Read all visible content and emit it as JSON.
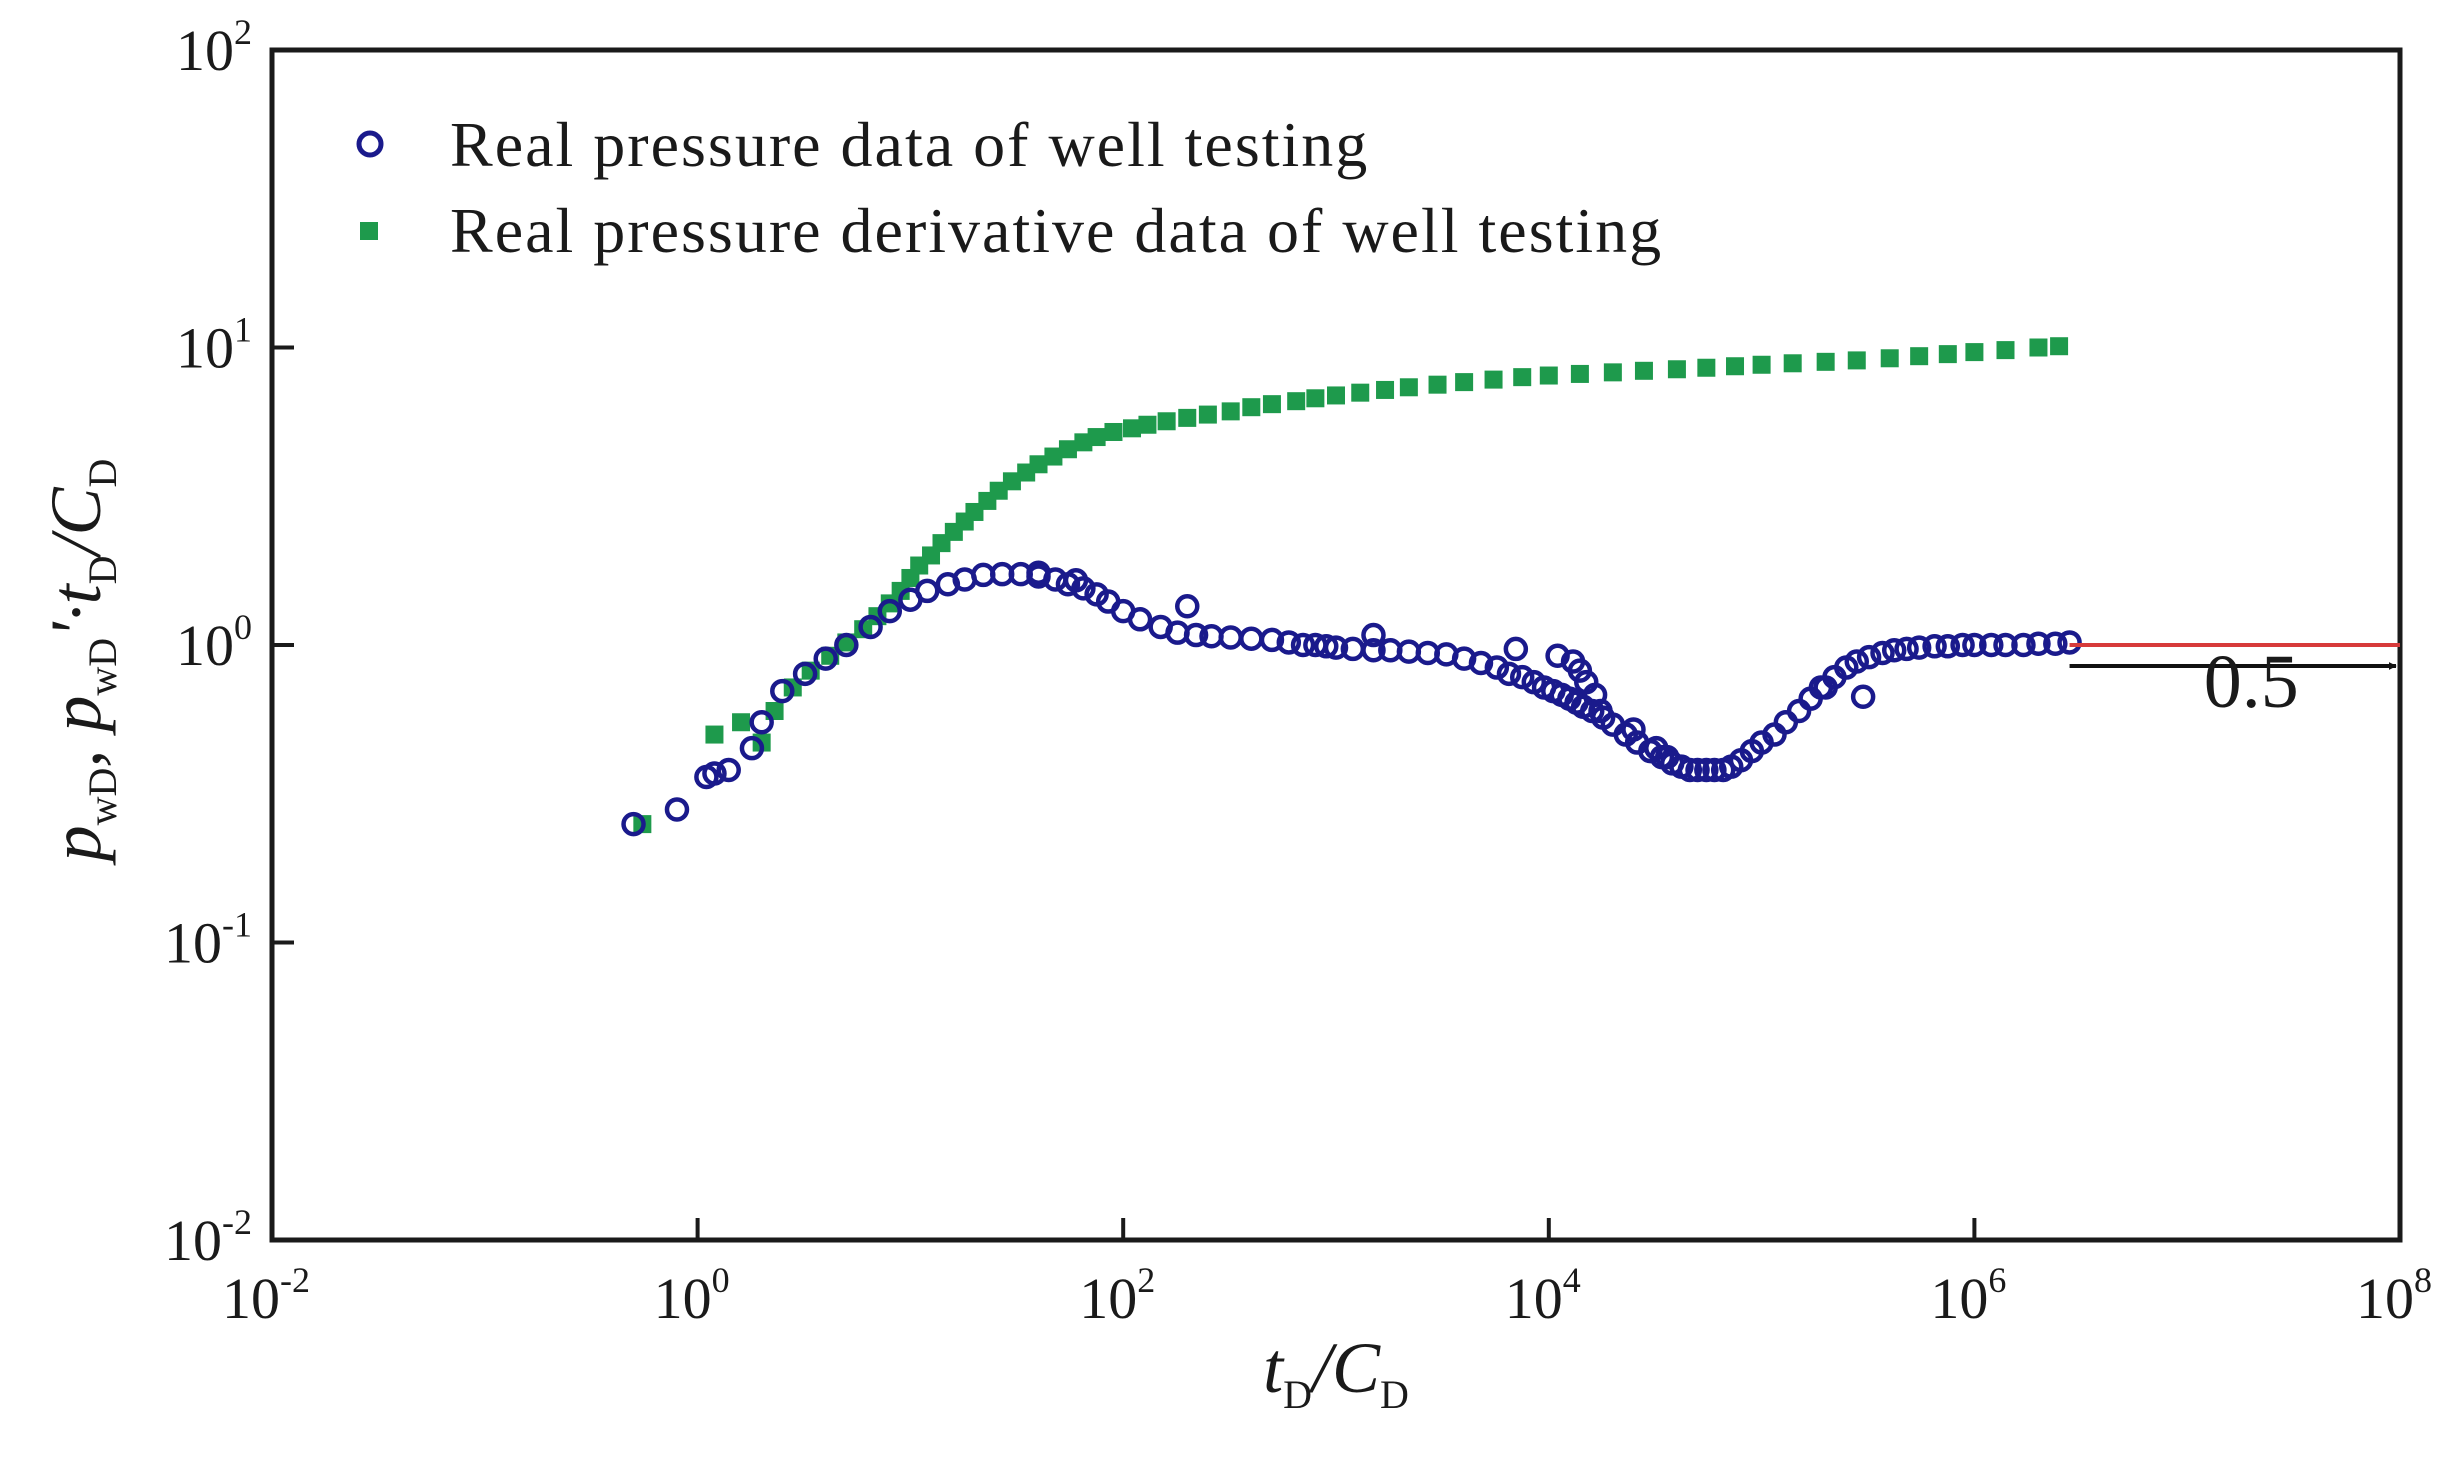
{
  "chart_data": {
    "type": "scatter",
    "title": "",
    "xlabel": "tD/CD",
    "ylabel": "pwD, pwD'·tD/CD",
    "x_scale": "log",
    "y_scale": "log",
    "xlim": [
      0.01,
      100000000
    ],
    "ylim": [
      0.01,
      100
    ],
    "grid": false,
    "legend_position": "top-left",
    "x_ticks": [
      {
        "base": "10",
        "exp": "-2"
      },
      {
        "base": "10",
        "exp": "0"
      },
      {
        "base": "10",
        "exp": "2"
      },
      {
        "base": "10",
        "exp": "4"
      },
      {
        "base": "10",
        "exp": "6"
      },
      {
        "base": "10",
        "exp": "8"
      }
    ],
    "y_ticks": [
      {
        "base": "10",
        "exp": "-2"
      },
      {
        "base": "10",
        "exp": "-1"
      },
      {
        "base": "10",
        "exp": "0"
      },
      {
        "base": "10",
        "exp": "1"
      },
      {
        "base": "10",
        "exp": "2"
      }
    ],
    "series": [
      {
        "name": "Real pressure data of well testing",
        "marker": "open-circle",
        "color": "#1a1a8c",
        "x": [
          0.5,
          0.8,
          1.1,
          1.2,
          1.4,
          1.8,
          2.0,
          2.5,
          3.2,
          4.0,
          5.0,
          6.5,
          8.0,
          10,
          12,
          15,
          18,
          22,
          27,
          33,
          40,
          48,
          55,
          65,
          75,
          85,
          100,
          120,
          150,
          180,
          220,
          260,
          320,
          400,
          500,
          600,
          700,
          800,
          900,
          1000,
          1200,
          1500,
          1800,
          2200,
          2700,
          3300,
          4000,
          4800,
          5700,
          6500,
          7500,
          8500,
          9500,
          10500,
          11500,
          12500,
          13500,
          14500,
          16000,
          18000,
          20000,
          23000,
          26000,
          30000,
          34000,
          38000,
          42000,
          46000,
          50000,
          55000,
          60000,
          66000,
          72000,
          80000,
          90000,
          100000,
          115000,
          130000,
          150000,
          170000,
          190000,
          220000,
          250000,
          280000,
          320000,
          370000,
          420000,
          480000,
          550000,
          650000,
          750000,
          880000,
          1000000,
          1200000,
          1400000,
          1700000,
          2000000,
          2400000,
          2800000,
          200,
          1500,
          7000,
          11000,
          13000,
          14000,
          15000,
          16500,
          17500,
          25000,
          32000,
          36000,
          200000,
          300000,
          40,
          60
        ],
        "y": [
          0.25,
          0.28,
          0.36,
          0.37,
          0.38,
          0.45,
          0.55,
          0.7,
          0.8,
          0.9,
          1.0,
          1.15,
          1.3,
          1.42,
          1.52,
          1.6,
          1.66,
          1.72,
          1.73,
          1.73,
          1.7,
          1.66,
          1.6,
          1.55,
          1.48,
          1.4,
          1.3,
          1.22,
          1.15,
          1.1,
          1.08,
          1.07,
          1.06,
          1.05,
          1.04,
          1.02,
          1.0,
          1.0,
          0.99,
          0.98,
          0.97,
          0.96,
          0.96,
          0.95,
          0.94,
          0.93,
          0.9,
          0.87,
          0.84,
          0.8,
          0.78,
          0.75,
          0.72,
          0.7,
          0.68,
          0.66,
          0.64,
          0.62,
          0.6,
          0.57,
          0.54,
          0.5,
          0.47,
          0.44,
          0.42,
          0.4,
          0.39,
          0.38,
          0.38,
          0.38,
          0.38,
          0.38,
          0.39,
          0.41,
          0.44,
          0.47,
          0.5,
          0.55,
          0.6,
          0.66,
          0.72,
          0.78,
          0.84,
          0.88,
          0.91,
          0.94,
          0.96,
          0.97,
          0.98,
          0.99,
          0.99,
          1.0,
          1.0,
          1.0,
          1.0,
          1.0,
          1.01,
          1.01,
          1.02,
          1.35,
          1.08,
          0.97,
          0.92,
          0.88,
          0.82,
          0.75,
          0.68,
          0.6,
          0.52,
          0.45,
          0.42,
          0.72,
          0.67,
          1.75,
          1.65
        ]
      },
      {
        "name": "Real pressure derivative data of well testing",
        "marker": "filled-square",
        "color": "#1e9a4c",
        "x": [
          0.55,
          1.2,
          1.6,
          2.0,
          2.3,
          2.8,
          3.4,
          4.2,
          5.0,
          6.0,
          7.0,
          8.0,
          9.0,
          10,
          11,
          12.5,
          14,
          16,
          18,
          20,
          23,
          26,
          30,
          35,
          40,
          47,
          55,
          65,
          75,
          90,
          110,
          130,
          160,
          200,
          250,
          320,
          400,
          500,
          650,
          800,
          1000,
          1300,
          1700,
          2200,
          3000,
          4000,
          5500,
          7500,
          10000,
          14000,
          20000,
          28000,
          40000,
          55000,
          75000,
          100000,
          140000,
          200000,
          280000,
          400000,
          550000,
          750000,
          1000000,
          1400000,
          2000000,
          2500000
        ],
        "y": [
          0.25,
          0.5,
          0.55,
          0.47,
          0.6,
          0.72,
          0.82,
          0.92,
          1.02,
          1.13,
          1.25,
          1.38,
          1.52,
          1.68,
          1.85,
          2.0,
          2.2,
          2.4,
          2.6,
          2.8,
          3.05,
          3.3,
          3.55,
          3.8,
          4.05,
          4.3,
          4.55,
          4.8,
          5.0,
          5.2,
          5.35,
          5.5,
          5.65,
          5.8,
          5.95,
          6.1,
          6.3,
          6.45,
          6.6,
          6.75,
          6.9,
          7.05,
          7.2,
          7.35,
          7.5,
          7.65,
          7.8,
          7.95,
          8.05,
          8.15,
          8.25,
          8.35,
          8.45,
          8.55,
          8.65,
          8.75,
          8.85,
          8.95,
          9.05,
          9.2,
          9.35,
          9.5,
          9.65,
          9.8,
          10.0,
          10.1
        ]
      }
    ],
    "reference_line": {
      "color": "#d73a3a",
      "x_start": 2800000,
      "x_end": 100000000,
      "y": 1.0
    },
    "annotation": {
      "text": "0.5",
      "arrow_x_start": 2800000,
      "arrow_x_end": 100000000,
      "arrow_y": 0.85,
      "text_x": 20000000,
      "text_y": 0.62
    }
  }
}
